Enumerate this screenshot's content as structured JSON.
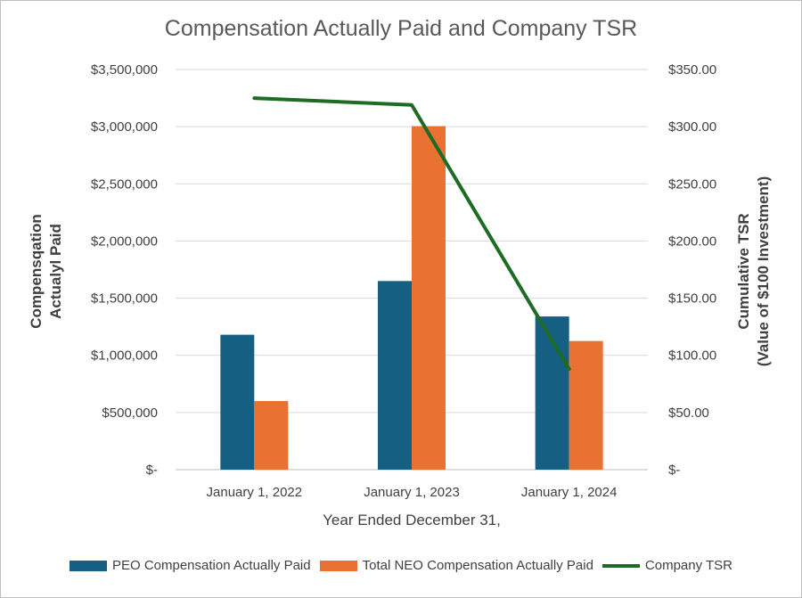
{
  "chart_data": {
    "type": "bar",
    "title": "Compensation Actually Paid and Company TSR",
    "categories": [
      "January 1, 2022",
      "January 1, 2023",
      "January 1, 2024"
    ],
    "xlabel": "Year Ended December 31,",
    "ylabel": [
      "Compensqation",
      "Actualyl Paid"
    ],
    "y2label": [
      "Cumulative TSR",
      "(Value of $100 Investment)"
    ],
    "ylim": [
      0,
      3500000
    ],
    "y2lim": [
      0,
      350
    ],
    "yticks": [
      0,
      500000,
      1000000,
      1500000,
      2000000,
      2500000,
      3000000,
      3500000
    ],
    "ytick_labels": [
      "$-",
      "$500,000",
      "$1,000,000",
      "$1,500,000",
      "$2,000,000",
      "$2,500,000",
      "$3,000,000",
      "$3,500,000"
    ],
    "y2ticks": [
      0,
      50,
      100,
      150,
      200,
      250,
      300,
      350
    ],
    "y2tick_labels": [
      "$-",
      "$50.00",
      "$100.00",
      "$150.00",
      "$200.00",
      "$250.00",
      "$300.00",
      "$350.00"
    ],
    "grid": true,
    "legend_position": "bottom",
    "series": [
      {
        "name": "PEO Compensation Actually Paid",
        "type": "bar",
        "axis": "left",
        "color": "#156082",
        "values": [
          1180000,
          1650000,
          1340000
        ]
      },
      {
        "name": "Total NEO Compensation Actually Paid",
        "type": "bar",
        "axis": "left",
        "color": "#e97132",
        "values": [
          600000,
          3005000,
          1125000
        ]
      },
      {
        "name": "Company TSR",
        "type": "line",
        "axis": "right",
        "color": "#1e6b23",
        "values": [
          325,
          319,
          88
        ]
      }
    ]
  }
}
